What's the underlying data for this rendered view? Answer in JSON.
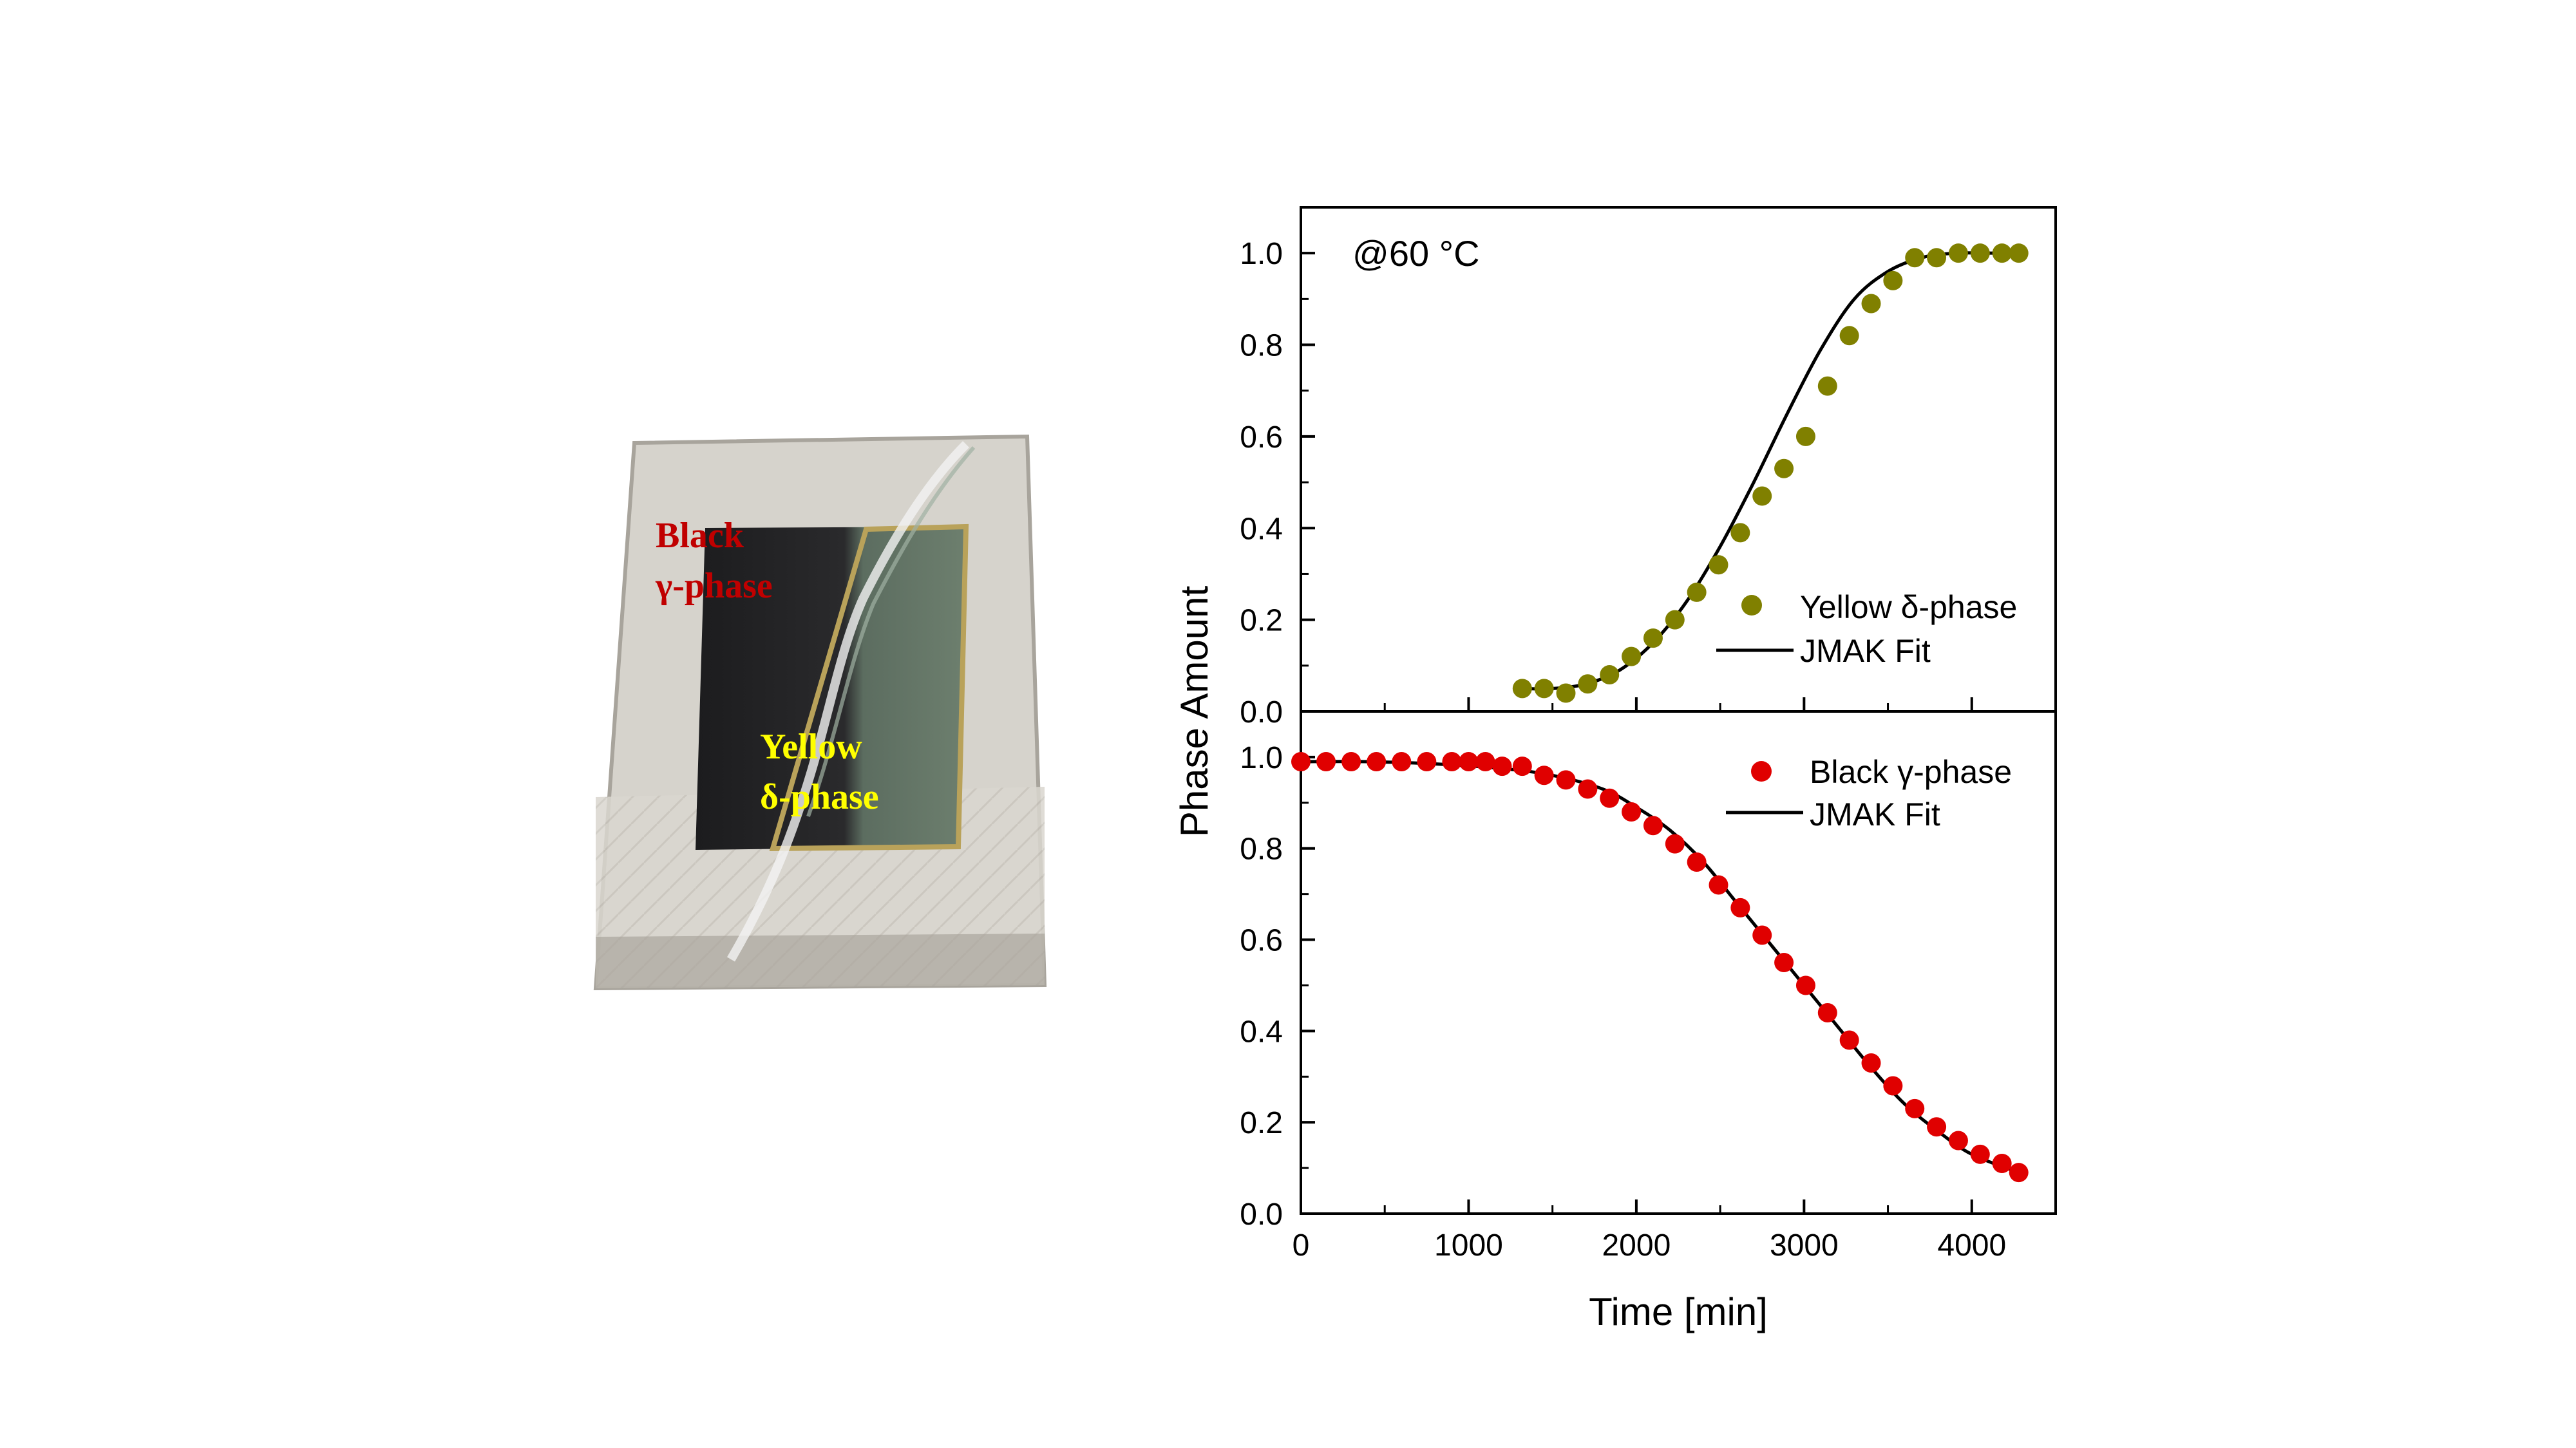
{
  "photo": {
    "label_black_line1": "Black",
    "label_black_line2": "γ-phase",
    "label_yellow_line1": "Yellow",
    "label_yellow_line2": "δ-phase",
    "colors": {
      "black_label": "#c00000",
      "yellow_label": "#ffff00"
    }
  },
  "chart_data": [
    {
      "type": "scatter",
      "panel": "top",
      "annotation": "@60 °C",
      "xlim": [
        0,
        4500
      ],
      "ylim": [
        0,
        1.1
      ],
      "yticks": [
        "0.0",
        "0.2",
        "0.4",
        "0.6",
        "0.8",
        "1.0"
      ],
      "legend_placement": "lower-right",
      "series": [
        {
          "name": "Yellow δ-phase",
          "kind": "points",
          "color": "#808000",
          "x": [
            1320,
            1450,
            1580,
            1710,
            1840,
            1970,
            2100,
            2230,
            2360,
            2490,
            2620,
            2750,
            2880,
            3010,
            3140,
            3270,
            3400,
            3530,
            3660,
            3790,
            3920,
            4050,
            4180,
            4280
          ],
          "y": [
            0.05,
            0.05,
            0.04,
            0.06,
            0.08,
            0.12,
            0.16,
            0.2,
            0.26,
            0.32,
            0.39,
            0.47,
            0.53,
            0.6,
            0.71,
            0.82,
            0.89,
            0.94,
            0.99,
            0.99,
            1.0,
            1.0,
            1.0,
            1.0
          ]
        },
        {
          "name": "JMAK Fit",
          "kind": "line",
          "color": "#000000",
          "x": [
            1320,
            1500,
            1700,
            1900,
            2100,
            2300,
            2500,
            2700,
            2900,
            3100,
            3300,
            3500,
            3700,
            3900,
            4100,
            4280
          ],
          "y": [
            0.05,
            0.05,
            0.06,
            0.09,
            0.15,
            0.24,
            0.36,
            0.5,
            0.65,
            0.79,
            0.9,
            0.96,
            0.99,
            1.0,
            1.0,
            1.0
          ]
        }
      ]
    },
    {
      "type": "scatter",
      "panel": "bottom",
      "xlim": [
        0,
        4500
      ],
      "ylim": [
        0,
        1.1
      ],
      "xlabel": "Time [min]",
      "ylabel": "Phase Amount",
      "xticks": [
        "0",
        "1000",
        "2000",
        "3000",
        "4000"
      ],
      "yticks": [
        "0.0",
        "0.2",
        "0.4",
        "0.6",
        "0.8",
        "1.0"
      ],
      "legend_placement": "upper-right",
      "series": [
        {
          "name": "Black γ-phase",
          "kind": "points",
          "color": "#e00000",
          "x": [
            0,
            150,
            300,
            450,
            600,
            750,
            900,
            1000,
            1100,
            1200,
            1320,
            1450,
            1580,
            1710,
            1840,
            1970,
            2100,
            2230,
            2360,
            2490,
            2620,
            2750,
            2880,
            3010,
            3140,
            3270,
            3400,
            3530,
            3660,
            3790,
            3920,
            4050,
            4180,
            4280
          ],
          "y": [
            0.99,
            0.99,
            0.99,
            0.99,
            0.99,
            0.99,
            0.99,
            0.99,
            0.99,
            0.98,
            0.98,
            0.96,
            0.95,
            0.93,
            0.91,
            0.88,
            0.85,
            0.81,
            0.77,
            0.72,
            0.67,
            0.61,
            0.55,
            0.5,
            0.44,
            0.38,
            0.33,
            0.28,
            0.23,
            0.19,
            0.16,
            0.13,
            0.11,
            0.09
          ]
        },
        {
          "name": "JMAK Fit",
          "kind": "line",
          "color": "#000000",
          "x": [
            0,
            400,
            800,
            1200,
            1500,
            1800,
            2000,
            2200,
            2400,
            2600,
            2800,
            3000,
            3200,
            3400,
            3600,
            3800,
            4000,
            4280
          ],
          "y": [
            0.99,
            0.99,
            0.985,
            0.975,
            0.96,
            0.93,
            0.89,
            0.84,
            0.77,
            0.68,
            0.59,
            0.5,
            0.41,
            0.32,
            0.24,
            0.18,
            0.13,
            0.09
          ]
        }
      ]
    }
  ]
}
